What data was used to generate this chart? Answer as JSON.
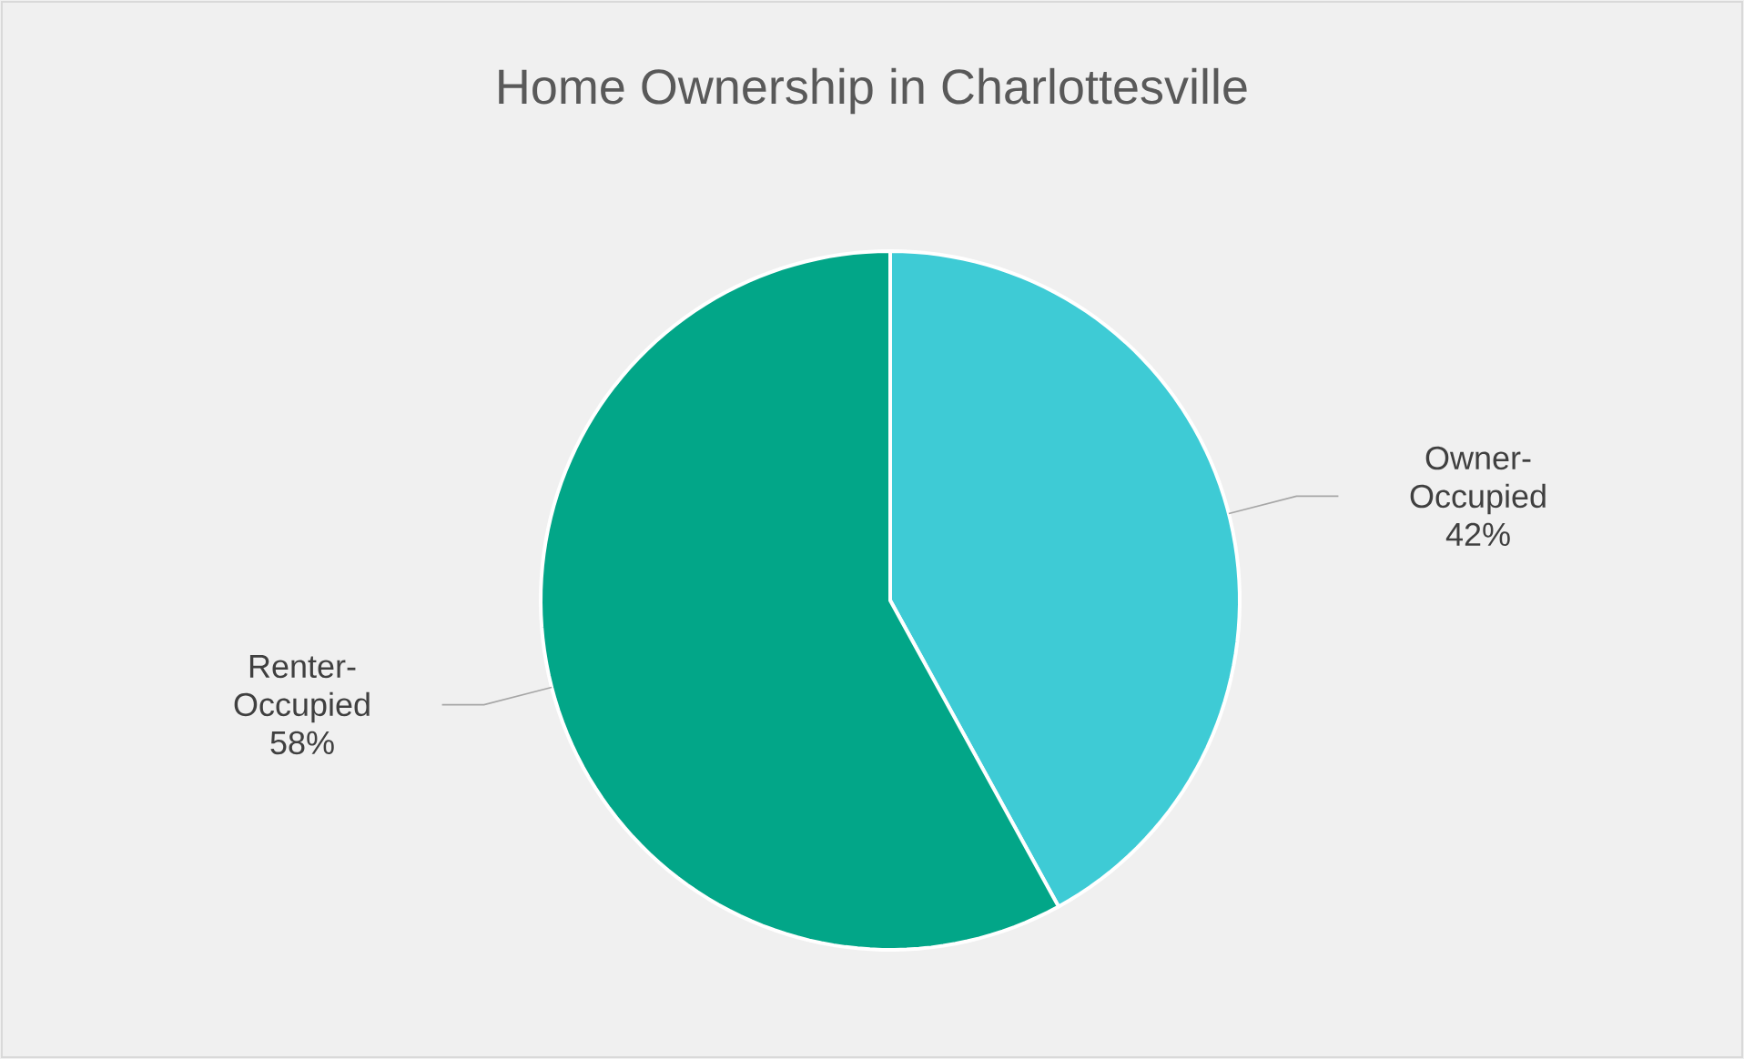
{
  "chart_data": {
    "type": "pie",
    "title": "Home Ownership in Charlottesville",
    "categories": [
      "Owner-Occupied",
      "Renter-Occupied"
    ],
    "values": [
      42,
      58
    ],
    "value_labels": [
      "42%",
      "58%"
    ],
    "colors": [
      "#3ecbd5",
      "#02a688"
    ]
  }
}
